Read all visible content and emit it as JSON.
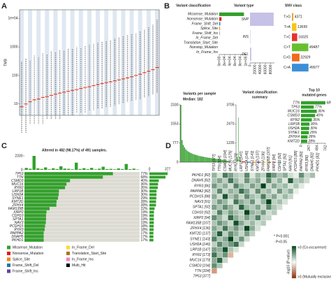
{
  "chart_data": [
    {
      "type": "strip",
      "panel": "A",
      "ylabel": "TMB",
      "log_y": true,
      "ylim": [
        4,
        20000
      ],
      "yticks": [
        10,
        100,
        1000,
        {
          "value": 10000,
          "label": "1e+04"
        }
      ],
      "median": [
        8,
        10,
        12,
        14,
        15,
        17,
        18,
        20,
        22,
        24,
        26,
        28,
        30,
        32,
        35,
        38,
        40,
        44,
        48,
        52,
        56,
        60,
        65,
        70,
        76,
        82,
        90,
        100,
        110,
        125,
        140,
        160,
        190
      ],
      "low": [
        1,
        1,
        2,
        2,
        2,
        2,
        3,
        3,
        3,
        3,
        4,
        4,
        4,
        5,
        5,
        5,
        6,
        6,
        7,
        7,
        8,
        8,
        9,
        10,
        11,
        12,
        13,
        14,
        15,
        17,
        19,
        22,
        25
      ],
      "high": [
        300,
        400,
        350,
        500,
        450,
        600,
        550,
        700,
        650,
        800,
        750,
        900,
        850,
        1000,
        950,
        1100,
        1200,
        1300,
        1400,
        1500,
        1600,
        1800,
        2000,
        2200,
        2400,
        2600,
        2800,
        3000,
        3500,
        4000,
        5000,
        6000,
        9000
      ],
      "median_color": "#e8402a",
      "point_color": "#333333"
    },
    {
      "type": "bar",
      "orientation": "horizontal",
      "panel": "B",
      "title": "Variant classification",
      "categories": [
        "Missense_Mutation",
        "Nonsense_Mutation",
        "Frame_Shift_Del",
        "Splice_Site",
        "Frame_Shift_Ins",
        "In_Frame_Del",
        "Translation_Start_Site",
        "Nonstop_Mutation",
        "In_Frame_Ins"
      ],
      "values": [
        93000,
        8400,
        3600,
        2900,
        1200,
        600,
        90,
        60,
        50
      ],
      "colors": [
        "#33a02c",
        "#e31a1c",
        "#1f78b4",
        "#ff7f00",
        "#6a3d9a",
        "#ffd92f",
        "#a6761d",
        "#f781bf",
        "#66c2a5"
      ],
      "xlim": [
        0,
        100000
      ],
      "xticks": [
        {
          "value": 0,
          "label": "0e+00"
        },
        {
          "value": 20000,
          "label": "2e+04"
        },
        {
          "value": 40000,
          "label": "4e+04"
        },
        {
          "value": 60000,
          "label": "6e+04"
        },
        {
          "value": 80000,
          "label": "8e+04"
        },
        {
          "value": 100000,
          "label": "1e+05"
        }
      ]
    },
    {
      "type": "bar",
      "orientation": "horizontal",
      "title": "Variant type",
      "categories": [
        "SNP",
        "INS",
        "DEL"
      ],
      "values": [
        92000,
        1500,
        5000
      ],
      "color": "#c6c1e6",
      "xlim": [
        0,
        95000
      ],
      "xticks": [
        0,
        20000,
        40000,
        60000,
        80000
      ]
    },
    {
      "type": "bar",
      "orientation": "horizontal",
      "title": "SNV class",
      "show_values": true,
      "value_color": "#8b1a1a",
      "categories": [
        "T>G",
        "T>A",
        "T>C",
        "C>T",
        "C>G",
        "C>A"
      ],
      "values": [
        4371,
        13699,
        16025,
        49487,
        22929,
        49977
      ],
      "colors": [
        "#f0a030",
        "#f5c518",
        "#e8312f",
        "#66c02e",
        "#f26b1d",
        "#3b8fd9"
      ],
      "xlim": [
        0,
        80000
      ]
    },
    {
      "type": "bar",
      "orientation": "vertical",
      "title": "Variants per sample",
      "subtitle": "Median: 182",
      "values": [
        2330,
        900,
        700,
        600,
        520,
        470,
        430,
        400,
        370,
        350,
        330,
        310,
        295,
        280,
        265,
        250,
        240,
        230,
        220,
        210,
        200,
        190,
        182,
        175,
        168,
        160,
        152,
        145,
        138,
        130,
        122,
        115,
        107,
        98,
        90,
        80,
        70,
        58,
        45,
        30
      ],
      "color": "#33a02c",
      "ylim": [
        0,
        2330
      ],
      "yticks": [
        0,
        777,
        1553,
        2330
      ]
    },
    {
      "type": "box",
      "title": [
        "Variant classification",
        "summary"
      ],
      "q1": [
        60,
        8,
        3,
        2,
        1,
        0,
        0,
        0,
        0
      ],
      "median": [
        140,
        15,
        6,
        4,
        2,
        1,
        0,
        0,
        0
      ],
      "q3": [
        320,
        28,
        12,
        8,
        4,
        2,
        1,
        0,
        0
      ],
      "whisker_high": [
        2900,
        60,
        25,
        18,
        9,
        4,
        2,
        1,
        1
      ],
      "colors": [
        "#33a02c",
        "#e31a1c",
        "#1f78b4",
        "#ff7f00",
        "#6a3d9a",
        "#ffd92f",
        "#a6761d",
        "#f781bf",
        "#66c2a5"
      ],
      "ylim": [
        0,
        3705
      ],
      "yticks": [
        0,
        1235,
        2470,
        3705
      ]
    },
    {
      "type": "bar",
      "orientation": "horizontal",
      "title": [
        "Top 10",
        "mutated genes"
      ],
      "categories": [
        "TTN",
        "TP53",
        "MUC16",
        "CSMD3",
        "RYR2",
        "LRP1B",
        "USH2A",
        "SYNE1",
        "ZFHX4",
        "KMT2D"
      ],
      "values": [
        742,
        390,
        480,
        430,
        330,
        260,
        250,
        240,
        200,
        190
      ],
      "value_labels": [
        "68%",
        "77%",
        "36%",
        "40%",
        "35%",
        "30%",
        "30%",
        "29%",
        "28%",
        "28%"
      ],
      "color": "#33a02c",
      "xlim": [
        0,
        742
      ],
      "xticks": [
        0,
        247,
        494,
        742
      ]
    },
    {
      "type": "oncoplot",
      "panel": "C",
      "title": "Altered in 482 (98.17%) of 491 samples.",
      "samples": 491,
      "genes": [
        "TP53",
        "TTN",
        "CSMD3",
        "MUC16",
        "RYR2",
        "LRP1B",
        "USH2A",
        "SYNE1",
        "KMT2D",
        "ZFHX4",
        "FAM135B",
        "XIRP2",
        "CDH10",
        "SPTA1",
        "NAV3",
        "PCDH15",
        "RYR3",
        "PAPPA2",
        "DNAH5",
        "PKHD1"
      ],
      "counts": [
        377,
        334,
        194,
        179,
        173,
        147,
        146,
        143,
        137,
        136,
        107,
        94,
        92,
        92,
        91,
        88,
        86,
        82,
        82,
        82
      ],
      "value_labels": [
        "77%",
        "68%",
        "40%",
        "36%",
        "35%",
        "30%",
        "30%",
        "29%",
        "28%",
        "28%",
        "22%",
        "19%",
        "19%",
        "19%",
        "19%",
        "18%",
        "18%",
        "17%",
        "17%",
        "17%"
      ],
      "tmb": [
        320,
        180,
        2330,
        240,
        150,
        410,
        90,
        260,
        130,
        600,
        210,
        170,
        95,
        1200,
        140,
        280,
        110,
        330,
        75,
        190,
        520,
        125,
        160,
        85,
        230,
        140,
        980,
        115,
        200,
        60
      ],
      "ylim": [
        0,
        2330
      ],
      "yticks": [
        0,
        2330
      ],
      "xlim": [
        0,
        377
      ],
      "xticks": [
        0,
        377
      ],
      "color": "#33a02c",
      "legend": {
        "names": [
          "Missense_Mutation",
          "Nonsense_Mutation",
          "Splice_Site",
          "Frame_Shift_Del",
          "Frame_Shift_Ins",
          "In_Frame_Del",
          "Translation_Start_Site",
          "In_Frame_Ins",
          "Multi_Hit"
        ],
        "colors": [
          "#33a02c",
          "#e31a1c",
          "#ff7f00",
          "#1f78b4",
          "#6a3d9a",
          "#ffd92f",
          "#a6761d",
          "#f781bf",
          "#000000"
        ]
      }
    },
    {
      "type": "heatmap",
      "panel": "D",
      "rows": [
        "PKHD1 [82]",
        "DNAH5 [82]",
        "RYR3 [86]",
        "PAPPA2 [82]",
        "PCDH15 [88]",
        "NAV3 [91]",
        "SPTA1 [92]",
        "CDH10 [92]",
        "XIRP2 [94]",
        "FAM135B [107]",
        "ZFHX4 [136]",
        "KMT2D [137]",
        "SYNE1 [143]",
        "USH2A [146]",
        "LRP1B [147]",
        "RYR2 [173]",
        "MUC16 [179]",
        "CSMD3 [194]",
        "TTN [334]",
        "TP53 [377]"
      ],
      "columns": [
        "TP53 [377]",
        "TTN [334]",
        "CSMD3 [194]",
        "MUC16 [179]",
        "RYR2 [173]",
        "LRP1B [147]",
        "USH2A [146]",
        "SYNE1 [143]",
        "KMT2D [137]",
        "ZFHX4 [136]",
        "FAM135B [107]",
        "XIRP2 [94]",
        "CDH10 [92]",
        "SPTA1 [92]",
        "NAV3 [91]",
        "PCDH15 [88]",
        "PAPPA2 [82]",
        "RYR3 [86]",
        "DNAH5 [82]",
        "PKHD1 [82]"
      ],
      "values": [
        [
          1.2,
          0.4,
          2.1,
          1.5,
          0.8,
          0.6,
          1.9,
          0.3,
          1.1,
          0.7,
          2.4,
          1.6,
          0.9,
          1.3,
          0.5,
          0.2,
          1.8,
          0.6,
          1.0
        ],
        [
          0.9,
          1.4,
          0.7,
          2.2,
          1.1,
          0.5,
          1.7,
          0.8,
          1.3,
          0.4,
          1.9,
          0.6,
          1.2,
          0.3,
          2.6,
          0.8,
          1.0,
          0.5
        ],
        [
          1.6,
          0.8,
          1.3,
          0.5,
          2.0,
          1.1,
          0.7,
          1.5,
          0.9,
          3.0,
          0.6,
          1.4,
          0.8,
          1.1,
          0.4,
          0.9,
          0.3
        ],
        [
          0.7,
          1.9,
          0.6,
          1.2,
          0.9,
          2.3,
          1.4,
          0.5,
          1.8,
          0.8,
          1.1,
          0.4,
          1.6,
          0.7,
          1.3,
          0.2
        ],
        [
          1.3,
          0.5,
          2.7,
          0.9,
          1.5,
          0.6,
          1.8,
          1.0,
          0.7,
          2.1,
          0.8,
          1.4,
          0.5,
          1.1,
          0.6
        ],
        [
          0.8,
          1.6,
          1.1,
          0.4,
          2.2,
          1.3,
          0.9,
          1.7,
          0.5,
          1.2,
          3.0,
          0.7,
          1.0,
          0.4
        ],
        [
          1.5,
          0.9,
          1.8,
          1.2,
          0.6,
          2.5,
          1.1,
          0.8,
          1.4,
          0.6,
          1.9,
          0.9,
          0.5
        ],
        [
          0.6,
          2.0,
          0.8,
          1.5,
          1.0,
          0.7,
          3.0,
          1.2,
          0.9,
          1.6,
          0.5,
          0.8
        ],
        [
          1.8,
          1.1,
          0.5,
          2.4,
          1.3,
          0.8,
          1.5,
          0.9,
          2.0,
          0.7,
          0.6
        ],
        [
          0.9,
          1.7,
          1.2,
          0.6,
          2.8,
          1.4,
          0.7,
          1.1,
          0.5,
          0.8
        ],
        [
          1.4,
          0.8,
          2.2,
          1.0,
          1.6,
          0.9,
          3.0,
          1.3,
          0.4
        ],
        [
          1.1,
          2.6,
          0.7,
          1.8,
          1.2,
          0.6,
          1.5,
          0.7
        ],
        [
          2.0,
          0.9,
          1.4,
          3.0,
          0.8,
          1.7,
          0.5
        ],
        [
          0.7,
          1.9,
          1.1,
          1.6,
          2.3,
          0.6
        ],
        [
          1.5,
          1.2,
          2.8,
          0.9,
          0.4
        ],
        [
          2.2,
          1.0,
          1.7,
          -0.8
        ],
        [
          1.3,
          2.5,
          0.6
        ],
        [
          1.8,
          0.9
        ],
        [
          -1.2
        ],
        []
      ],
      "legend": [
        "* P<0.001",
        "· P<0.05"
      ],
      "colorbar_labels": [
        ">3 (Co-occurence)",
        ">3 (Mutually exclusive)"
      ],
      "colorbar_title": "-log10 (P-value)"
    }
  ]
}
